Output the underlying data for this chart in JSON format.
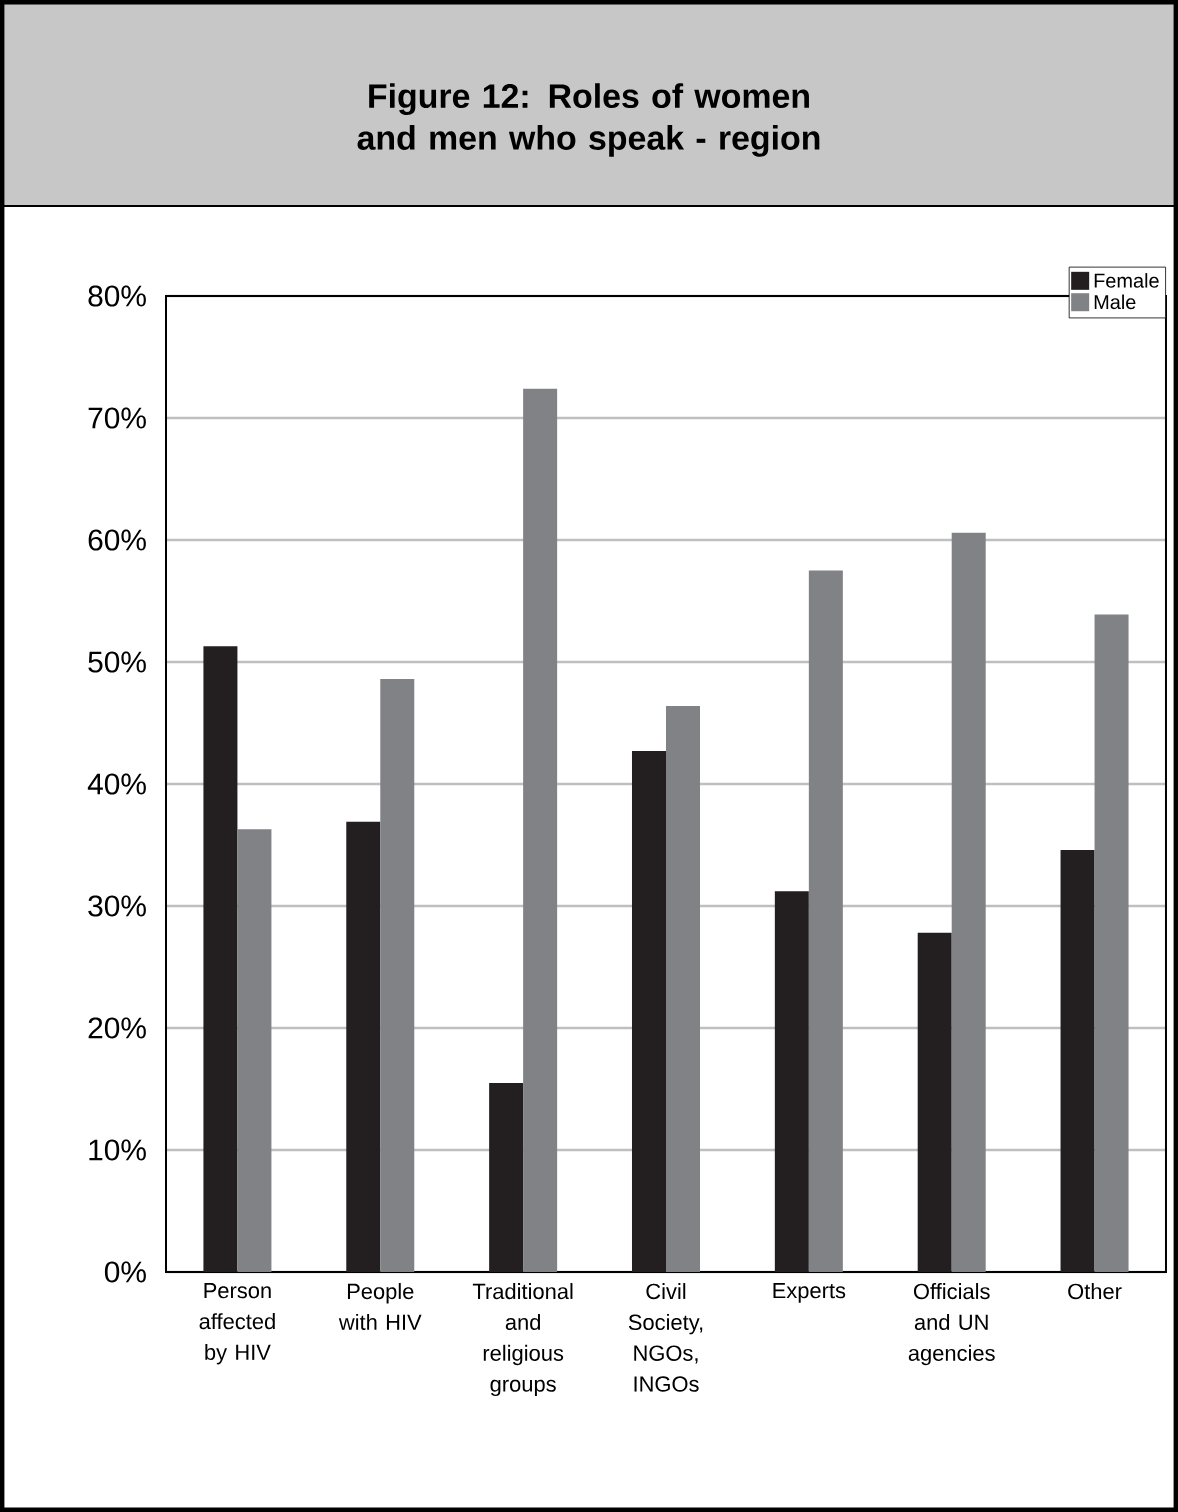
{
  "chart_data": {
    "type": "bar",
    "title": "Figure 12: Roles of women and men who speak - region",
    "categories": [
      "Person affected by HIV",
      "People with HIV",
      "Traditional and religious groups",
      "Civil Society, NGOs, INGOs",
      "Experts",
      "Officials and UN agencies",
      "Other"
    ],
    "series": [
      {
        "name": "Female",
        "color": "#231f20",
        "values": [
          51.3,
          36.9,
          15.5,
          42.7,
          31.2,
          27.8,
          34.6
        ]
      },
      {
        "name": "Male",
        "color": "#808285",
        "values": [
          36.3,
          48.6,
          72.4,
          46.4,
          57.5,
          60.6,
          53.9
        ]
      }
    ],
    "ylim": [
      0,
      80
    ],
    "yticks": [
      {
        "value": 0,
        "label": "0%"
      },
      {
        "value": 10,
        "label": "10%"
      },
      {
        "value": 20,
        "label": "20%"
      },
      {
        "value": 30,
        "label": "30%"
      },
      {
        "value": 40,
        "label": "40%"
      },
      {
        "value": 50,
        "label": "50%"
      },
      {
        "value": 60,
        "label": "60%"
      },
      {
        "value": 70,
        "label": "70%"
      },
      {
        "value": 80,
        "label": "80%"
      }
    ],
    "grid": "y",
    "legend": "top right"
  }
}
